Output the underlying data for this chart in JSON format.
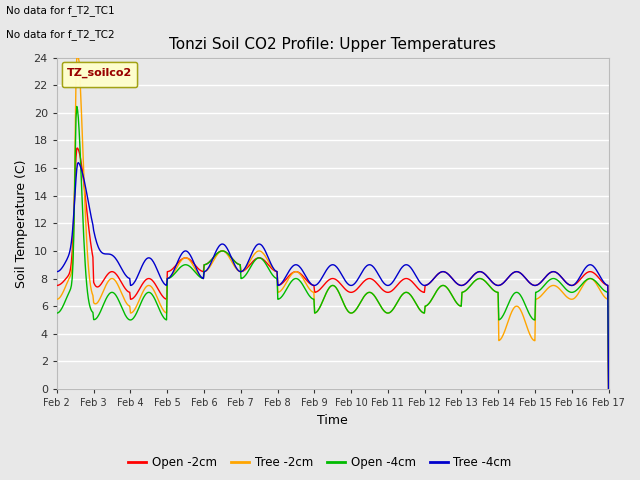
{
  "title": "Tonzi Soil CO2 Profile: Upper Temperatures",
  "ylabel": "Soil Temperature (C)",
  "xlabel": "Time",
  "no_data_text": [
    "No data for f_T2_TC1",
    "No data for f_T2_TC2"
  ],
  "legend_label_text": "TZ_soilco2",
  "legend_entries": [
    "Open -2cm",
    "Tree -2cm",
    "Open -4cm",
    "Tree -4cm"
  ],
  "legend_colors": [
    "#ff0000",
    "#ffa500",
    "#00bb00",
    "#0000cc"
  ],
  "ylim": [
    0,
    24
  ],
  "yticks": [
    0,
    2,
    4,
    6,
    8,
    10,
    12,
    14,
    16,
    18,
    20,
    22,
    24
  ],
  "xtick_labels": [
    "Feb 2",
    "Feb 3",
    "Feb 4",
    "Feb 5",
    "Feb 6",
    "Feb 7",
    "Feb 8",
    "Feb 9",
    "Feb 10",
    "Feb 11",
    "Feb 12",
    "Feb 13",
    "Feb 14",
    "Feb 15",
    "Feb 16",
    "Feb 17"
  ],
  "fig_bg": "#e8e8e8",
  "plot_bg": "#e8e8e8",
  "grid_color": "#ffffff",
  "title_fontsize": 11,
  "axis_label_fontsize": 9,
  "tick_fontsize": 8
}
